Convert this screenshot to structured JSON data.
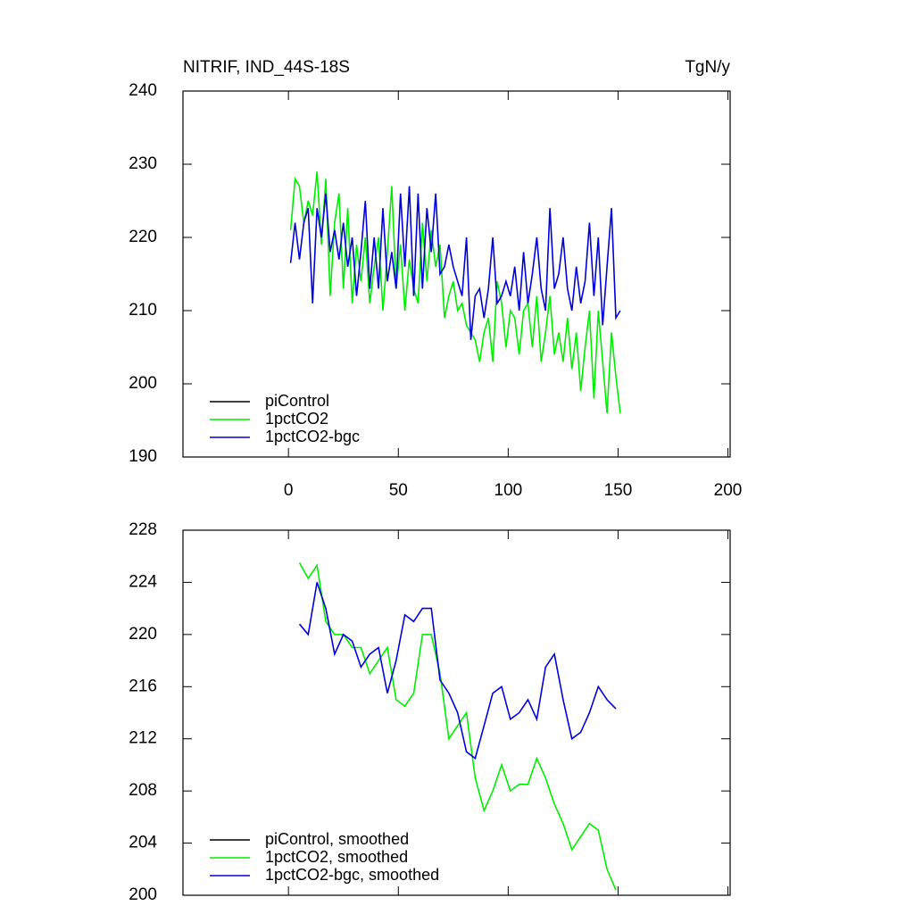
{
  "chart_data": [
    {
      "type": "line",
      "title": "NITRIF, IND_44S-18S",
      "units": "TgN/y",
      "x": [
        1,
        3,
        5,
        7,
        9,
        11,
        13,
        15,
        17,
        19,
        21,
        23,
        25,
        27,
        29,
        31,
        33,
        35,
        37,
        39,
        41,
        43,
        45,
        47,
        49,
        51,
        53,
        55,
        57,
        59,
        61,
        63,
        65,
        67,
        69,
        71,
        73,
        75,
        77,
        79,
        81,
        83,
        85,
        87,
        89,
        91,
        93,
        95,
        97,
        99,
        101,
        103,
        105,
        107,
        109,
        111,
        113,
        115,
        117,
        119,
        121,
        123,
        125,
        127,
        129,
        131,
        133,
        135,
        137,
        139,
        141,
        143,
        145,
        147,
        149,
        151
      ],
      "series": [
        {
          "name": "piControl",
          "color": "#000000",
          "values": [
            null,
            null,
            null,
            null,
            null,
            null,
            null,
            null,
            null,
            null,
            null,
            null,
            null,
            null,
            null,
            null,
            null,
            null,
            null,
            null,
            null,
            null,
            null,
            null,
            null,
            null,
            null,
            null,
            null,
            null,
            null,
            null,
            null,
            null,
            null,
            null,
            null,
            null,
            null,
            null,
            null,
            null,
            null,
            null,
            null,
            null,
            null,
            null,
            null,
            null,
            null,
            null,
            null,
            null,
            null,
            null,
            null,
            null,
            null,
            null,
            null,
            null,
            null,
            null,
            null,
            null,
            null,
            null,
            null,
            null,
            null,
            null,
            null,
            null,
            null,
            null
          ]
        },
        {
          "name": "1pctCO2",
          "color": "#00ee00",
          "values": [
            221,
            228,
            227,
            222,
            225,
            223,
            229,
            219,
            228,
            212,
            222,
            226,
            213,
            224,
            211,
            219,
            214,
            220,
            211,
            216,
            220,
            210,
            218,
            227,
            213,
            219,
            210,
            217,
            213,
            211,
            222,
            214,
            221,
            216,
            219,
            209,
            212,
            214,
            210,
            211,
            208,
            207,
            206,
            203,
            207,
            209,
            203,
            214,
            211,
            205,
            210,
            209,
            204,
            210,
            211,
            205,
            212,
            203,
            207,
            212,
            204,
            207,
            203,
            209,
            202,
            207,
            199,
            205,
            210,
            198,
            210,
            203,
            196,
            207,
            201,
            196
          ]
        },
        {
          "name": "1pctCO2-bgc",
          "color": "#0000dd",
          "values": [
            216.5,
            222,
            217,
            222,
            224,
            211,
            224,
            220,
            226,
            218,
            221,
            217,
            222,
            216,
            220,
            212,
            218,
            225,
            213,
            220,
            213,
            224,
            214,
            218,
            213,
            226,
            216,
            227,
            212,
            226,
            213,
            224,
            218,
            226,
            215,
            216,
            219,
            216,
            214,
            212,
            220,
            206,
            212,
            213,
            209,
            213,
            220,
            211,
            212,
            214,
            212,
            216,
            210,
            218,
            211,
            215,
            220,
            213,
            210,
            224,
            213,
            215,
            220,
            213,
            210,
            216,
            211,
            214,
            222,
            212,
            220,
            208,
            216,
            224,
            209,
            210
          ]
        }
      ],
      "xlim": [
        -48,
        201
      ],
      "xticks": [
        0,
        50,
        100,
        150,
        200
      ],
      "ylim": [
        190,
        240
      ],
      "yticks": [
        190,
        200,
        210,
        220,
        230,
        240
      ],
      "legend": "lower left"
    },
    {
      "type": "line",
      "x": [
        5,
        9,
        13,
        17,
        21,
        25,
        29,
        33,
        37,
        41,
        45,
        49,
        53,
        57,
        61,
        65,
        69,
        73,
        77,
        81,
        85,
        89,
        93,
        97,
        101,
        105,
        109,
        113,
        117,
        121,
        125,
        129,
        133,
        137,
        141,
        145,
        149
      ],
      "series": [
        {
          "name": "piControl, smoothed",
          "color": "#000000",
          "values": [
            null,
            null,
            null,
            null,
            null,
            null,
            null,
            null,
            null,
            null,
            null,
            null,
            null,
            null,
            null,
            null,
            null,
            null,
            null,
            null,
            null,
            null,
            null,
            null,
            null,
            null,
            null,
            null,
            null,
            null,
            null,
            null,
            null,
            null,
            null,
            null,
            null
          ]
        },
        {
          "name": "1pctCO2, smoothed",
          "color": "#00ee00",
          "values": [
            225.5,
            224.3,
            225.3,
            221,
            220,
            220,
            219,
            219,
            217,
            218,
            219,
            215,
            214.5,
            215.5,
            220,
            220,
            217,
            212,
            213,
            214,
            209,
            206.5,
            208,
            210,
            208,
            208.5,
            208.5,
            210.5,
            209,
            207,
            205.5,
            203.5,
            204.5,
            205.5,
            205,
            202,
            200.4
          ]
        },
        {
          "name": "1pctCO2-bgc, smoothed",
          "color": "#0000dd",
          "values": [
            220.8,
            220,
            224,
            222,
            218.5,
            220,
            219.5,
            217.5,
            218.5,
            219,
            215.5,
            218,
            221.5,
            221,
            222,
            222,
            216.5,
            215.5,
            214,
            211,
            210.5,
            213,
            215.5,
            216,
            213.5,
            214,
            215,
            213.5,
            217.5,
            218.5,
            215,
            212,
            212.5,
            214,
            216,
            215,
            214.3
          ]
        }
      ],
      "xlim": [
        -48,
        201
      ],
      "xticks": [
        0,
        50,
        100,
        150,
        200
      ],
      "ylim": [
        200,
        228
      ],
      "yticks": [
        200,
        204,
        208,
        212,
        216,
        220,
        224,
        228
      ],
      "legend": "lower left"
    }
  ]
}
